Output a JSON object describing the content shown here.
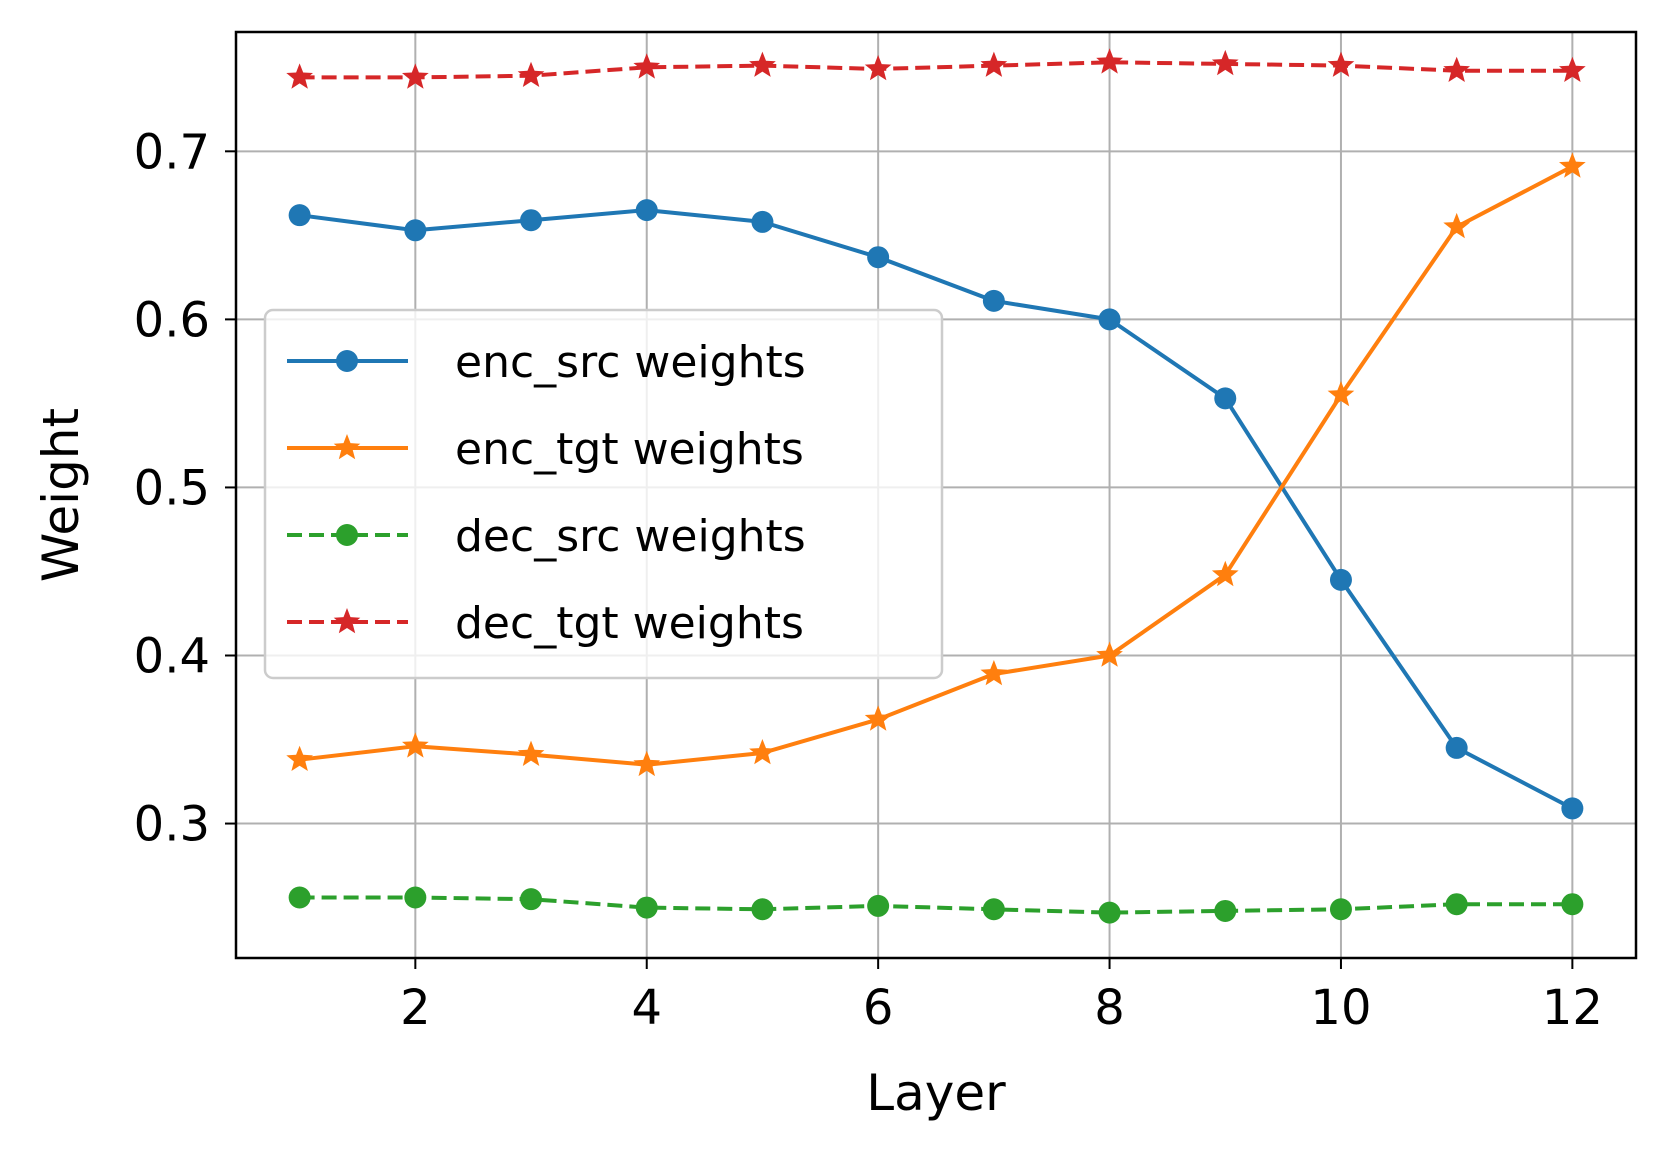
{
  "chart_data": {
    "type": "line",
    "title": "",
    "xlabel": "Layer",
    "ylabel": "Weight",
    "x": [
      1,
      2,
      3,
      4,
      5,
      6,
      7,
      8,
      9,
      10,
      11,
      12
    ],
    "xlim": [
      0.45,
      12.55
    ],
    "ylim": [
      0.22,
      0.771
    ],
    "xticks": [
      2,
      4,
      6,
      8,
      10,
      12
    ],
    "yticks": [
      0.3,
      0.4,
      0.5,
      0.6,
      0.7
    ],
    "xtick_labels": [
      "2",
      "4",
      "6",
      "8",
      "10",
      "12"
    ],
    "ytick_labels": [
      "0.3",
      "0.4",
      "0.5",
      "0.6",
      "0.7"
    ],
    "grid": true,
    "legend_position": "center-left",
    "series": [
      {
        "name": "enc_src weights",
        "color": "#1f77b4",
        "line_style": "solid",
        "marker": "circle",
        "values": [
          0.662,
          0.653,
          0.659,
          0.665,
          0.658,
          0.637,
          0.611,
          0.6,
          0.553,
          0.445,
          0.345,
          0.309
        ]
      },
      {
        "name": "enc_tgt weights",
        "color": "#ff7f0e",
        "line_style": "solid",
        "marker": "star",
        "values": [
          0.338,
          0.346,
          0.341,
          0.335,
          0.342,
          0.362,
          0.389,
          0.4,
          0.448,
          0.555,
          0.655,
          0.691
        ]
      },
      {
        "name": "dec_src weights",
        "color": "#2ca02c",
        "line_style": "dashed",
        "marker": "circle",
        "values": [
          0.256,
          0.256,
          0.255,
          0.25,
          0.249,
          0.251,
          0.249,
          0.247,
          0.248,
          0.249,
          0.252,
          0.252
        ]
      },
      {
        "name": "dec_tgt weights",
        "color": "#d62728",
        "line_style": "dashed",
        "marker": "star",
        "values": [
          0.744,
          0.744,
          0.745,
          0.75,
          0.751,
          0.749,
          0.751,
          0.753,
          0.752,
          0.751,
          0.748,
          0.748
        ]
      }
    ]
  }
}
